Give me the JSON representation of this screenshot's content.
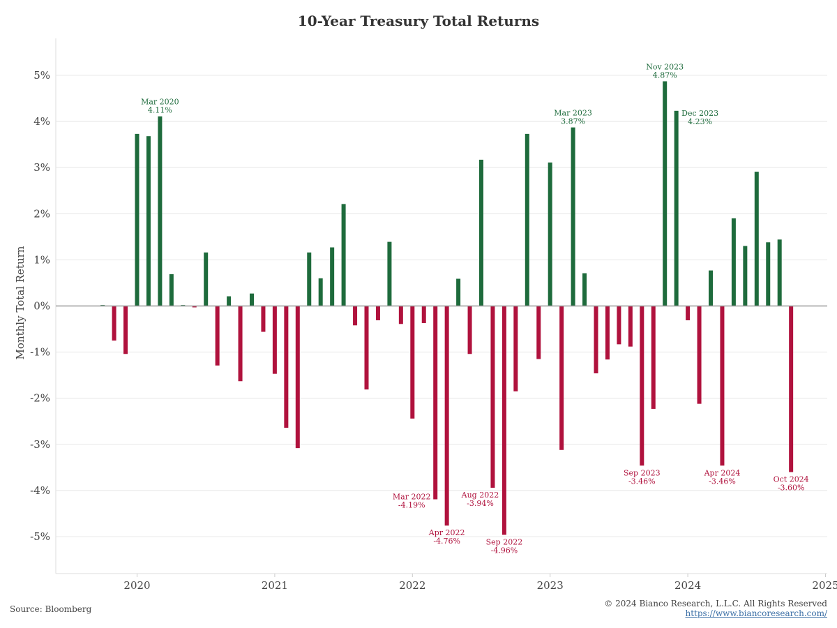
{
  "chart_data": {
    "type": "bar",
    "title": "10-Year Treasury Total Returns",
    "ylabel": "Monthly Total Return",
    "xlabel": "",
    "ylim": [
      -5.8,
      5.8
    ],
    "yticks": [
      "5%",
      "4%",
      "3%",
      "2%",
      "1%",
      "0%",
      "-1%",
      "-2%",
      "-3%",
      "-4%",
      "-5%"
    ],
    "ytick_values": [
      5,
      4,
      3,
      2,
      1,
      0,
      -1,
      -2,
      -3,
      -4,
      -5
    ],
    "xticks": [
      "2020",
      "2021",
      "2022",
      "2023",
      "2024",
      "2025"
    ],
    "grid": true,
    "colors": {
      "positive": "#1e6b3c",
      "negative": "#b0123d",
      "zero_line": "#9a9a9a",
      "grid": "#e6e6e6"
    },
    "x": [
      "Oct 2019",
      "Nov 2019",
      "Dec 2019",
      "Jan 2020",
      "Feb 2020",
      "Mar 2020",
      "Apr 2020",
      "May 2020",
      "Jun 2020",
      "Jul 2020",
      "Aug 2020",
      "Sep 2020",
      "Oct 2020",
      "Nov 2020",
      "Dec 2020",
      "Jan 2021",
      "Feb 2021",
      "Mar 2021",
      "Apr 2021",
      "May 2021",
      "Jun 2021",
      "Jul 2021",
      "Aug 2021",
      "Sep 2021",
      "Oct 2021",
      "Nov 2021",
      "Dec 2021",
      "Jan 2022",
      "Feb 2022",
      "Mar 2022",
      "Apr 2022",
      "May 2022",
      "Jun 2022",
      "Jul 2022",
      "Aug 2022",
      "Sep 2022",
      "Oct 2022",
      "Nov 2022",
      "Dec 2022",
      "Jan 2023",
      "Feb 2023",
      "Mar 2023",
      "Apr 2023",
      "May 2023",
      "Jun 2023",
      "Jul 2023",
      "Aug 2023",
      "Sep 2023",
      "Oct 2023",
      "Nov 2023",
      "Dec 2023",
      "Jan 2024",
      "Feb 2024",
      "Mar 2024",
      "Apr 2024",
      "May 2024",
      "Jun 2024",
      "Jul 2024",
      "Aug 2024",
      "Sep 2024",
      "Oct 2024"
    ],
    "values": [
      0.02,
      -0.75,
      -1.04,
      3.73,
      3.68,
      4.11,
      0.69,
      0.02,
      -0.03,
      1.16,
      -1.29,
      0.21,
      -1.63,
      0.27,
      -0.56,
      -1.47,
      -2.64,
      -3.08,
      1.16,
      0.6,
      1.27,
      2.21,
      -0.42,
      -1.81,
      -0.31,
      1.39,
      -0.39,
      -2.44,
      -0.37,
      -4.19,
      -4.76,
      0.59,
      -1.04,
      3.17,
      -3.94,
      -4.96,
      -1.85,
      3.73,
      -1.15,
      3.11,
      -3.12,
      3.87,
      0.71,
      -1.46,
      -1.16,
      -0.83,
      -0.88,
      -3.46,
      -2.23,
      4.87,
      4.23,
      -0.31,
      -2.12,
      0.77,
      -3.46,
      1.9,
      1.3,
      2.91,
      1.38,
      1.44,
      -3.6
    ],
    "annotations": [
      {
        "month": "Mar 2020",
        "label": "Mar 2020",
        "value_text": "4.11%",
        "dx": 0,
        "dy": 0
      },
      {
        "month": "Mar 2022",
        "label": "Mar 2022",
        "value_text": "-4.19%",
        "dx": -34,
        "dy": -14
      },
      {
        "month": "Apr 2022",
        "label": "Apr 2022",
        "value_text": "-4.76%",
        "dx": 0,
        "dy": 0
      },
      {
        "month": "Aug 2022",
        "label": "Aug 2022",
        "value_text": "-3.94%",
        "dx": -18,
        "dy": 0
      },
      {
        "month": "Sep 2022",
        "label": "Sep 2022",
        "value_text": "-4.96%",
        "dx": 0,
        "dy": 0
      },
      {
        "month": "Mar 2023",
        "label": "Mar 2023",
        "value_text": "3.87%",
        "dx": 0,
        "dy": 0
      },
      {
        "month": "Sep 2023",
        "label": "Sep 2023",
        "value_text": "-3.46%",
        "dx": 0,
        "dy": 0
      },
      {
        "month": "Nov 2023",
        "label": "Nov 2023",
        "value_text": "4.87%",
        "dx": 0,
        "dy": 0
      },
      {
        "month": "Dec 2023",
        "label": "Dec 2023",
        "value_text": "4.23%",
        "dx": 34,
        "dy": 24
      },
      {
        "month": "Apr 2024",
        "label": "Apr 2024",
        "value_text": "-3.46%",
        "dx": 0,
        "dy": 0
      },
      {
        "month": "Oct 2024",
        "label": "Oct 2024",
        "value_text": "-3.60%",
        "dx": 0,
        "dy": 0
      }
    ]
  },
  "footer": {
    "source": "Source: Bloomberg",
    "copyright": "© 2024 Bianco Research, L.L.C. All Rights Reserved",
    "url": "https://www.biancoresearch.com/"
  }
}
